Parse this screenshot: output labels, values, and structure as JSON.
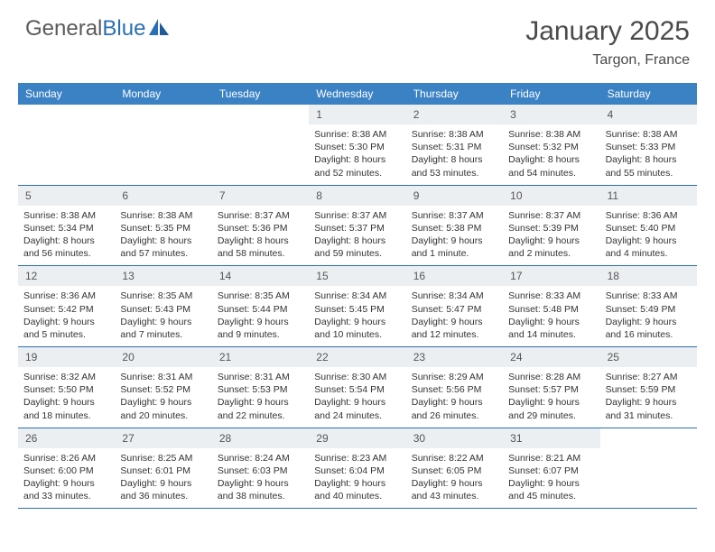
{
  "brand": {
    "name_part1": "General",
    "name_part2": "Blue"
  },
  "title": "January 2025",
  "location": "Targon, France",
  "colors": {
    "header_bg": "#3b82c4",
    "header_text": "#ffffff",
    "daynum_bg": "#eceff1",
    "border": "#2a6fb5",
    "text": "#333333",
    "title_text": "#4a4a4a",
    "logo_gray": "#5a5a5a",
    "logo_blue": "#2a6fb5"
  },
  "day_labels": [
    "Sunday",
    "Monday",
    "Tuesday",
    "Wednesday",
    "Thursday",
    "Friday",
    "Saturday"
  ],
  "weeks": [
    [
      {
        "n": "",
        "sunrise": "",
        "sunset": "",
        "daylight": ""
      },
      {
        "n": "",
        "sunrise": "",
        "sunset": "",
        "daylight": ""
      },
      {
        "n": "",
        "sunrise": "",
        "sunset": "",
        "daylight": ""
      },
      {
        "n": "1",
        "sunrise": "8:38 AM",
        "sunset": "5:30 PM",
        "daylight": "8 hours and 52 minutes."
      },
      {
        "n": "2",
        "sunrise": "8:38 AM",
        "sunset": "5:31 PM",
        "daylight": "8 hours and 53 minutes."
      },
      {
        "n": "3",
        "sunrise": "8:38 AM",
        "sunset": "5:32 PM",
        "daylight": "8 hours and 54 minutes."
      },
      {
        "n": "4",
        "sunrise": "8:38 AM",
        "sunset": "5:33 PM",
        "daylight": "8 hours and 55 minutes."
      }
    ],
    [
      {
        "n": "5",
        "sunrise": "8:38 AM",
        "sunset": "5:34 PM",
        "daylight": "8 hours and 56 minutes."
      },
      {
        "n": "6",
        "sunrise": "8:38 AM",
        "sunset": "5:35 PM",
        "daylight": "8 hours and 57 minutes."
      },
      {
        "n": "7",
        "sunrise": "8:37 AM",
        "sunset": "5:36 PM",
        "daylight": "8 hours and 58 minutes."
      },
      {
        "n": "8",
        "sunrise": "8:37 AM",
        "sunset": "5:37 PM",
        "daylight": "8 hours and 59 minutes."
      },
      {
        "n": "9",
        "sunrise": "8:37 AM",
        "sunset": "5:38 PM",
        "daylight": "9 hours and 1 minute."
      },
      {
        "n": "10",
        "sunrise": "8:37 AM",
        "sunset": "5:39 PM",
        "daylight": "9 hours and 2 minutes."
      },
      {
        "n": "11",
        "sunrise": "8:36 AM",
        "sunset": "5:40 PM",
        "daylight": "9 hours and 4 minutes."
      }
    ],
    [
      {
        "n": "12",
        "sunrise": "8:36 AM",
        "sunset": "5:42 PM",
        "daylight": "9 hours and 5 minutes."
      },
      {
        "n": "13",
        "sunrise": "8:35 AM",
        "sunset": "5:43 PM",
        "daylight": "9 hours and 7 minutes."
      },
      {
        "n": "14",
        "sunrise": "8:35 AM",
        "sunset": "5:44 PM",
        "daylight": "9 hours and 9 minutes."
      },
      {
        "n": "15",
        "sunrise": "8:34 AM",
        "sunset": "5:45 PM",
        "daylight": "9 hours and 10 minutes."
      },
      {
        "n": "16",
        "sunrise": "8:34 AM",
        "sunset": "5:47 PM",
        "daylight": "9 hours and 12 minutes."
      },
      {
        "n": "17",
        "sunrise": "8:33 AM",
        "sunset": "5:48 PM",
        "daylight": "9 hours and 14 minutes."
      },
      {
        "n": "18",
        "sunrise": "8:33 AM",
        "sunset": "5:49 PM",
        "daylight": "9 hours and 16 minutes."
      }
    ],
    [
      {
        "n": "19",
        "sunrise": "8:32 AM",
        "sunset": "5:50 PM",
        "daylight": "9 hours and 18 minutes."
      },
      {
        "n": "20",
        "sunrise": "8:31 AM",
        "sunset": "5:52 PM",
        "daylight": "9 hours and 20 minutes."
      },
      {
        "n": "21",
        "sunrise": "8:31 AM",
        "sunset": "5:53 PM",
        "daylight": "9 hours and 22 minutes."
      },
      {
        "n": "22",
        "sunrise": "8:30 AM",
        "sunset": "5:54 PM",
        "daylight": "9 hours and 24 minutes."
      },
      {
        "n": "23",
        "sunrise": "8:29 AM",
        "sunset": "5:56 PM",
        "daylight": "9 hours and 26 minutes."
      },
      {
        "n": "24",
        "sunrise": "8:28 AM",
        "sunset": "5:57 PM",
        "daylight": "9 hours and 29 minutes."
      },
      {
        "n": "25",
        "sunrise": "8:27 AM",
        "sunset": "5:59 PM",
        "daylight": "9 hours and 31 minutes."
      }
    ],
    [
      {
        "n": "26",
        "sunrise": "8:26 AM",
        "sunset": "6:00 PM",
        "daylight": "9 hours and 33 minutes."
      },
      {
        "n": "27",
        "sunrise": "8:25 AM",
        "sunset": "6:01 PM",
        "daylight": "9 hours and 36 minutes."
      },
      {
        "n": "28",
        "sunrise": "8:24 AM",
        "sunset": "6:03 PM",
        "daylight": "9 hours and 38 minutes."
      },
      {
        "n": "29",
        "sunrise": "8:23 AM",
        "sunset": "6:04 PM",
        "daylight": "9 hours and 40 minutes."
      },
      {
        "n": "30",
        "sunrise": "8:22 AM",
        "sunset": "6:05 PM",
        "daylight": "9 hours and 43 minutes."
      },
      {
        "n": "31",
        "sunrise": "8:21 AM",
        "sunset": "6:07 PM",
        "daylight": "9 hours and 45 minutes."
      },
      {
        "n": "",
        "sunrise": "",
        "sunset": "",
        "daylight": ""
      }
    ]
  ],
  "labels": {
    "sunrise": "Sunrise:",
    "sunset": "Sunset:",
    "daylight": "Daylight:"
  }
}
